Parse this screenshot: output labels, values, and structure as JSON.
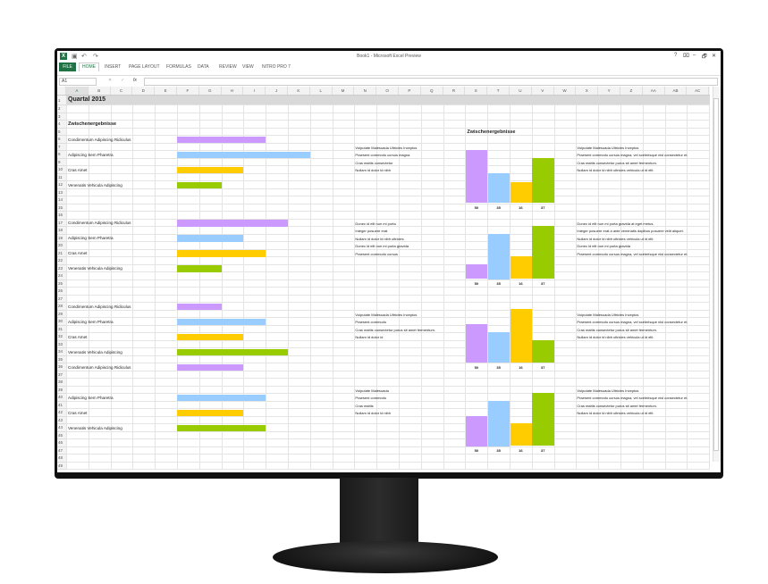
{
  "window": {
    "title": "Book1 - Microsoft Excel Preview",
    "controls": [
      "?",
      "⌧",
      "–",
      "🗗",
      "✕"
    ]
  },
  "quick_access": [
    "save-icon",
    "undo-icon",
    "redo-icon"
  ],
  "ribbon": {
    "tabs": [
      "FILE",
      "HOME",
      "INSERT",
      "PAGE LAYOUT",
      "FORMULAS",
      "DATA",
      "REVIEW",
      "VIEW",
      "NITRO PRO 7"
    ],
    "active_tab": "HOME"
  },
  "formula_bar": {
    "name_box": "A1",
    "fx": "fx",
    "value": ""
  },
  "columns": [
    "A",
    "B",
    "C",
    "D",
    "E",
    "F",
    "G",
    "H",
    "I",
    "J",
    "K",
    "L",
    "M",
    "N",
    "O",
    "P",
    "Q",
    "R",
    "S",
    "T",
    "U",
    "V",
    "W",
    "X",
    "Y",
    "Z",
    "AA",
    "AB",
    "AC"
  ],
  "row_count": 49,
  "sheet": {
    "title": "Quartal 2015",
    "subtitle": "Zwischenergebnisse",
    "chart_title": "Zwischenergebnisse",
    "colors": {
      "purple": "#cc99ff",
      "blue": "#99ccff",
      "yellow": "#ffcc00",
      "green": "#99cc00"
    },
    "blocks": [
      {
        "rows": [
          6,
          8,
          10,
          12
        ],
        "labels": [
          "Condimentum Adipiscing Ridiculus",
          "Adipiscing Sem Pharetra",
          "Cras Amet",
          "Venenatis Vehicula Adipiscing"
        ],
        "bar_lengths": [
          4,
          6,
          3,
          2
        ]
      },
      {
        "rows": [
          17,
          19,
          21,
          23
        ],
        "labels": [
          "Condimentum Adipiscing Ridiculus",
          "Adipiscing Sem Pharetra",
          "Cras Amet",
          "Venenatis Vehicula Adipiscing"
        ],
        "bar_lengths": [
          5,
          3,
          4,
          2
        ]
      },
      {
        "rows": [
          28,
          30,
          32,
          34
        ],
        "labels": [
          "Condimentum Adipiscing Ridiculus",
          "Adipiscing Sem Pharetra",
          "Cras Amet",
          "Venenatis Vehicula Adipiscing"
        ],
        "bar_lengths": [
          2,
          4,
          3,
          5
        ]
      },
      {
        "rows": [
          36,
          40,
          42,
          44
        ],
        "labels": [
          "Condimentum Adipiscing Ridiculus",
          "Adipiscing Sem Pharetra",
          "Cras Amet",
          "Venenatis Vehicula Adipiscing"
        ],
        "bar_lengths": [
          3,
          4,
          3,
          4
        ]
      }
    ],
    "charts": [
      {
        "top_row": 7,
        "label_row": 15,
        "levels": [
          0.88,
          0.49,
          0.35,
          0.74
        ],
        "labels": [
          "50",
          "35",
          "16",
          "37"
        ],
        "notes_n": [
          "Vulputate Malesuada Ultricies Inceptos",
          "Praesent commodo cursus magna",
          "Cras mattis consectetur",
          "Nullam id dolor id nibh"
        ],
        "notes_x": [
          "Vulputate Malesuada Ultricies Inceptos",
          "Praesent commodo cursus magna, vel scelerisque nisl consectetur et.",
          "Cras mattis consectetur purus sit amet fermentum.",
          "Nullam id dolor id nibh ultricies vehicula ut id elit."
        ]
      },
      {
        "top_row": 17,
        "label_row": 25,
        "levels": [
          0.24,
          0.75,
          0.37,
          0.88
        ],
        "labels": [
          "50",
          "35",
          "16",
          "37"
        ],
        "notes_n": [
          "Donec id elit non mi porta",
          "Integer posuere erat",
          "Nullam id dolor id nibh ultricies",
          "Donec id elit non mi porta gravida",
          "Praesent commodo cursus"
        ],
        "notes_x": [
          "Donec id elit non mi porta gravida at eget metus.",
          "Integer posuere erat a ante venenatis dapibus posuere velit aliquet.",
          "Nullam id dolor id nibh ultricies vehicula ut id elit.",
          "Donec id elit non mi porta gravida",
          "Praesent commodo cursus magna, vel scelerisque nisl consectetur et."
        ]
      },
      {
        "top_row": 29,
        "label_row": 36,
        "levels": [
          0.63,
          0.5,
          0.88,
          0.37
        ],
        "labels": [
          "50",
          "35",
          "16",
          "37"
        ],
        "notes_n": [
          "Vulputate Malesuada Ultricies Inceptos",
          "Praesent commodo",
          "Cras mattis consectetur purus sit amet fermentum.",
          "Nullam id dolor id"
        ],
        "notes_x": [
          "Vulputate Malesuada Ultricies Inceptos",
          "Praesent commodo cursus magna, vel scelerisque nisl consectetur et.",
          "Cras mattis consectetur purus sit amet fermentum.",
          "Nullam id dolor id nibh ultricies vehicula ut id elit."
        ]
      },
      {
        "top_row": 39,
        "label_row": 47,
        "levels": [
          0.5,
          0.75,
          0.37,
          0.88
        ],
        "labels": [
          "50",
          "35",
          "16",
          "37"
        ],
        "notes_n": [
          "Vulputate Malesuada",
          "Praesent commodo",
          "Cras mattis",
          "Nullam id dolor id nibh"
        ],
        "notes_x": [
          "Vulputate Malesuada Ultricies Inceptos",
          "Praesent commodo cursus magna, vel scelerisque nisl consectetur et.",
          "Cras mattis consectetur purus sit amet fermentum.",
          "Nullam id dolor id nibh ultricies vehicula ut id elit."
        ]
      }
    ]
  }
}
